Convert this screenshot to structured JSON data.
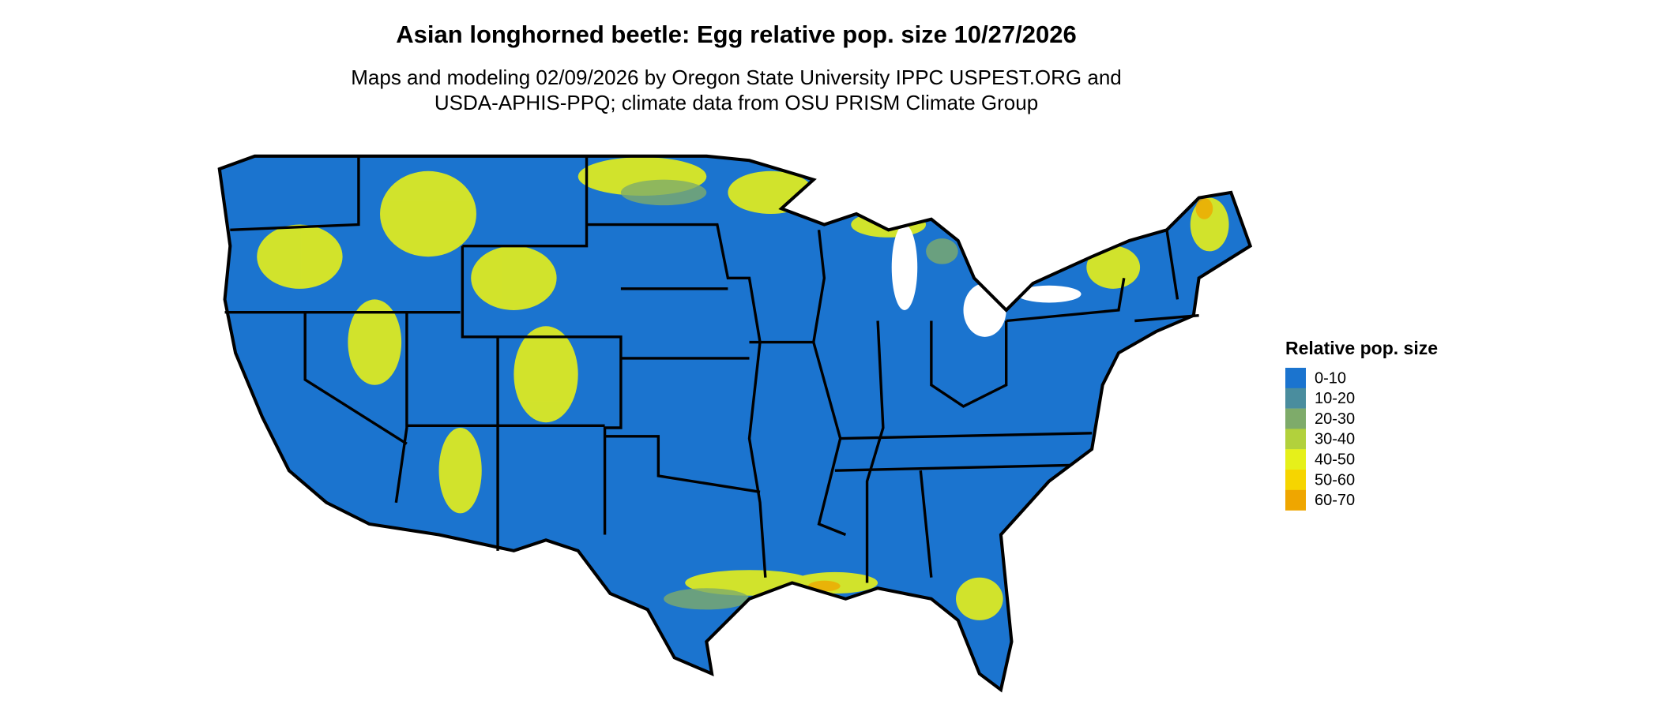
{
  "title": "Asian longhorned beetle: Egg relative pop. size 10/27/2026",
  "subtitle": [
    "Maps and modeling 02/09/2026 by Oregon State University IPPC USPEST.ORG and",
    "USDA-APHIS-PPQ; climate data from OSU PRISM Climate Group"
  ],
  "legend": {
    "title": "Relative pop. size",
    "items": [
      {
        "label": "0-10",
        "color": "#1b74cf"
      },
      {
        "label": "10-20",
        "color": "#4a8d9e"
      },
      {
        "label": "20-30",
        "color": "#7eab6a"
      },
      {
        "label": "30-40",
        "color": "#b2d13c"
      },
      {
        "label": "40-50",
        "color": "#e6f01a"
      },
      {
        "label": "50-60",
        "color": "#f6d500"
      },
      {
        "label": "60-70",
        "color": "#efa600"
      }
    ]
  }
}
